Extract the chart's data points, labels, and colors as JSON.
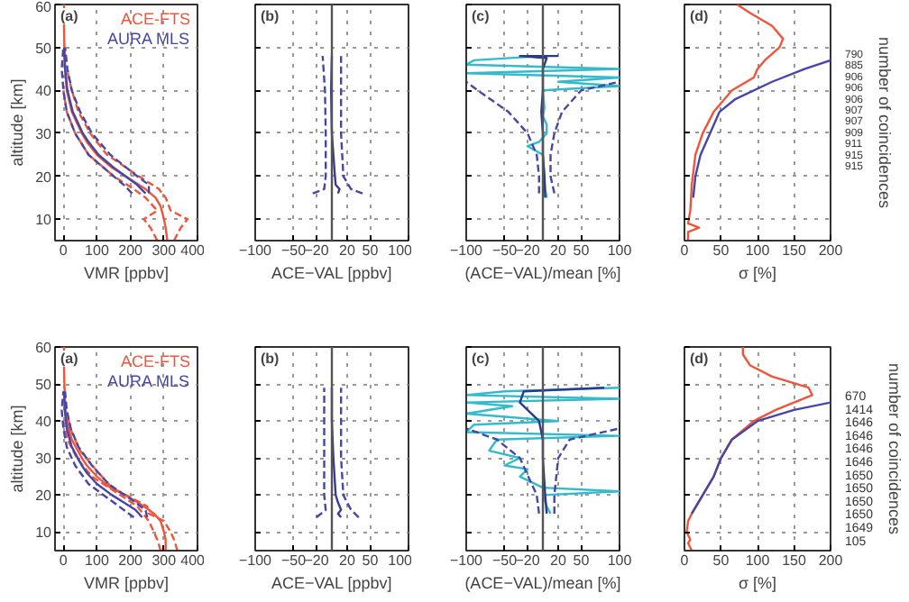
{
  "chart_data": [
    {
      "type": "line",
      "annotations": [
        "(a)"
      ],
      "xlabel": "VMR [ppbv]",
      "ylabel": "altitude [km]",
      "xlim": [
        -25,
        400
      ],
      "ylim": [
        5,
        60
      ],
      "xticks": [
        0,
        100,
        200,
        300,
        400
      ],
      "yticks": [
        10,
        20,
        30,
        40,
        50,
        60
      ],
      "grid": true,
      "legend": "top right",
      "series": [
        {
          "name": "ACE-FTS",
          "color": "#f0553a",
          "x": [
            310,
            305,
            300,
            290,
            275,
            245,
            185,
            145,
            100,
            70,
            55,
            25,
            10,
            5,
            3,
            2,
            2
          ],
          "values": [
            5,
            8,
            10,
            13,
            15,
            17,
            20,
            22,
            25,
            28,
            30,
            35,
            40,
            45,
            50,
            55,
            60
          ]
        },
        {
          "color": "#f0553a",
          "line_style": "dashed",
          "x": [
            280,
            260,
            240,
            280,
            245,
            210,
            150,
            75,
            35,
            10,
            0
          ],
          "values": [
            5,
            8,
            10,
            12,
            15,
            17,
            20,
            25,
            30,
            35,
            40
          ]
        },
        {
          "color": "#f0553a",
          "line_style": "dashed",
          "x": [
            330,
            350,
            370,
            320,
            305,
            285,
            225,
            130,
            80,
            45,
            25,
            10
          ],
          "values": [
            5,
            8,
            10,
            12,
            15,
            17,
            20,
            25,
            30,
            35,
            40,
            45
          ]
        },
        {
          "name": "AURA MLS",
          "color": "#4646a8",
          "x": [
            245,
            220,
            185,
            150,
            105,
            75,
            58,
            28,
            12,
            5,
            2
          ],
          "values": [
            16,
            18,
            20,
            22,
            25,
            28,
            30,
            35,
            40,
            45,
            50
          ]
        },
        {
          "color": "#4646a8",
          "line_style": "dashed",
          "x": [
            205,
            180,
            150,
            75,
            35,
            10,
            0,
            -5,
            0
          ],
          "values": [
            16,
            18,
            20,
            25,
            30,
            35,
            40,
            45,
            50
          ]
        },
        {
          "color": "#4646a8",
          "line_style": "dashed",
          "x": [
            255,
            255,
            220,
            140,
            85,
            50,
            25,
            12,
            5
          ],
          "values": [
            16,
            18,
            20,
            25,
            30,
            35,
            40,
            45,
            50
          ]
        }
      ]
    },
    {
      "type": "line",
      "annotations": [
        "(b)"
      ],
      "xlabel": "ACE−VAL [ppbv]",
      "xlim": [
        -100,
        100
      ],
      "ylim": [
        5,
        60
      ],
      "xticks": [
        -100,
        -50,
        -20,
        20,
        50,
        100
      ],
      "yticks": [
        10,
        20,
        30,
        40,
        50,
        60
      ],
      "grid": true,
      "tick_labels": "x",
      "ref_lines": [
        {
          "axis": "x",
          "value": 0,
          "color": "#555555"
        }
      ],
      "series": [
        {
          "color": "#3a3a90",
          "x": [
            8,
            10,
            5,
            4,
            2,
            0,
            -1,
            0
          ],
          "values": [
            16,
            17,
            18,
            20,
            25,
            30,
            40,
            48
          ]
        },
        {
          "color": "#4646a8",
          "line_style": "dashed",
          "x": [
            -25,
            -10,
            -8,
            -8,
            -9,
            -12
          ],
          "values": [
            16,
            17,
            20,
            30,
            40,
            48
          ]
        },
        {
          "color": "#4646a8",
          "line_style": "dashed",
          "x": [
            40,
            25,
            15,
            12,
            12,
            12
          ],
          "values": [
            16,
            17,
            20,
            30,
            40,
            48
          ]
        }
      ]
    },
    {
      "type": "line",
      "annotations": [
        "(c)"
      ],
      "xlabel": "(ACE−VAL)/mean [%]",
      "xlim": [
        -100,
        100
      ],
      "ylim": [
        5,
        60
      ],
      "xticks": [
        -100,
        -50,
        -20,
        20,
        50,
        100
      ],
      "yticks": [
        10,
        20,
        30,
        40,
        50,
        60
      ],
      "grid": true,
      "tick_labels": "x",
      "ref_lines": [
        {
          "axis": "x",
          "value": 0,
          "color": "#555555"
        }
      ],
      "series": [
        {
          "color": "#33bbcc",
          "x": [
            5,
            3,
            2,
            0,
            -20,
            -5,
            5,
            5,
            0,
            2,
            0,
            100,
            20,
            100,
            -100,
            100,
            -100,
            -90,
            0
          ],
          "values": [
            15,
            17,
            20,
            25,
            27,
            28,
            30,
            32,
            34,
            36,
            40,
            41,
            42,
            43,
            44,
            45,
            46,
            47,
            48
          ]
        },
        {
          "color": "#2a3a8a",
          "x": [
            3,
            2,
            0,
            0,
            -2,
            0,
            0,
            5,
            -30,
            20
          ],
          "values": [
            15,
            20,
            25,
            30,
            35,
            40,
            45,
            47.5,
            48,
            48
          ]
        },
        {
          "color": "#4646a8",
          "line_style": "dashed",
          "x": [
            -5,
            -5,
            -8,
            -20,
            -45,
            -85,
            -100
          ],
          "values": [
            16,
            20,
            25,
            30,
            35,
            40,
            42
          ]
        },
        {
          "color": "#4646a8",
          "line_style": "dashed",
          "x": [
            15,
            10,
            10,
            15,
            25,
            50,
            100
          ],
          "values": [
            16,
            20,
            25,
            30,
            35,
            40,
            42
          ]
        }
      ]
    },
    {
      "type": "line",
      "annotations": [
        "(d)",
        "790",
        "885",
        "906",
        "906",
        "906",
        "907",
        "907",
        "909",
        "911",
        "915",
        "915"
      ],
      "xlabel": "σ [%]",
      "xlim": [
        0,
        200
      ],
      "ylim": [
        5,
        60
      ],
      "xticks": [
        0,
        50,
        100,
        150,
        200
      ],
      "yticks": [
        10,
        20,
        30,
        40,
        50,
        60
      ],
      "grid": true,
      "tick_labels": "x",
      "y2label": "number of coincidences",
      "series": [
        {
          "color": "#f0553a",
          "x": [
            5,
            5,
            20,
            5,
            8,
            10,
            15,
            25,
            40,
            65,
            95,
            100,
            110,
            130,
            135,
            120,
            90,
            72
          ],
          "values": [
            5,
            7,
            8,
            9,
            12,
            18,
            25,
            30,
            35,
            40,
            43,
            45,
            47,
            50,
            52,
            55,
            58,
            60
          ]
        },
        {
          "color": "#4646a8",
          "x": [
            12,
            15,
            22,
            35,
            48,
            70,
            120,
            165,
            200
          ],
          "values": [
            15,
            20,
            25,
            30,
            35,
            38,
            42,
            45,
            47
          ]
        }
      ]
    },
    {
      "type": "line",
      "annotations": [
        "(a)"
      ],
      "xlabel": "VMR [ppbv]",
      "ylabel": "altitude [km]",
      "xlim": [
        -25,
        400
      ],
      "ylim": [
        5,
        60
      ],
      "xticks": [
        0,
        100,
        200,
        300,
        400
      ],
      "yticks": [
        10,
        20,
        30,
        40,
        50,
        60
      ],
      "grid": true,
      "legend": "top right",
      "series": [
        {
          "name": "ACE-FTS",
          "color": "#f0553a",
          "x": [
            305,
            305,
            300,
            290,
            270,
            240,
            185,
            140,
            100,
            70,
            55,
            25,
            10,
            5,
            3,
            2,
            2
          ],
          "values": [
            5,
            8,
            10,
            13,
            15,
            17,
            20,
            22,
            25,
            28,
            30,
            35,
            40,
            45,
            50,
            55,
            60
          ]
        },
        {
          "color": "#f0553a",
          "line_style": "dashed",
          "x": [
            290,
            280,
            270,
            255,
            220,
            170,
            85,
            40,
            12,
            0
          ],
          "values": [
            5,
            8,
            10,
            13,
            17,
            20,
            25,
            30,
            35,
            40
          ]
        },
        {
          "color": "#f0553a",
          "line_style": "dashed",
          "x": [
            340,
            330,
            320,
            300,
            255,
            250,
            145,
            95,
            50,
            25,
            10
          ],
          "values": [
            5,
            8,
            10,
            13,
            15,
            17,
            22,
            27,
            32,
            37,
            42
          ]
        },
        {
          "name": "AURA MLS",
          "color": "#4646a8",
          "x": [
            235,
            215,
            180,
            145,
            100,
            70,
            55,
            25,
            10,
            4,
            2
          ],
          "values": [
            14,
            16,
            18,
            20,
            23,
            26,
            28,
            33,
            38,
            43,
            48
          ]
        },
        {
          "color": "#4646a8",
          "line_style": "dashed",
          "x": [
            210,
            180,
            150,
            75,
            35,
            10,
            0,
            -5,
            0
          ],
          "values": [
            14,
            16,
            18,
            23,
            28,
            33,
            38,
            43,
            48
          ]
        },
        {
          "color": "#4646a8",
          "line_style": "dashed",
          "x": [
            250,
            245,
            215,
            135,
            85,
            45,
            22,
            10,
            5
          ],
          "values": [
            14,
            16,
            18,
            23,
            28,
            33,
            38,
            43,
            48
          ]
        }
      ]
    },
    {
      "type": "line",
      "annotations": [
        "(b)"
      ],
      "xlabel": "ACE−VAL [ppbv]",
      "xlim": [
        -100,
        100
      ],
      "ylim": [
        5,
        60
      ],
      "xticks": [
        -100,
        -50,
        -20,
        20,
        50,
        100
      ],
      "yticks": [
        10,
        20,
        30,
        40,
        50,
        60
      ],
      "grid": true,
      "tick_labels": "x",
      "ref_lines": [
        {
          "axis": "x",
          "value": 0,
          "color": "#555555"
        }
      ],
      "series": [
        {
          "color": "#3a3a90",
          "x": [
            12,
            8,
            12,
            8,
            5,
            2,
            0,
            0
          ],
          "values": [
            14,
            15,
            16,
            18,
            20,
            30,
            40,
            49
          ]
        },
        {
          "color": "#4646a8",
          "line_style": "dashed",
          "x": [
            -20,
            -8,
            -10,
            -10,
            -10,
            -10
          ],
          "values": [
            14,
            16,
            20,
            30,
            40,
            49
          ]
        },
        {
          "color": "#4646a8",
          "line_style": "dashed",
          "x": [
            35,
            25,
            15,
            12,
            12,
            12
          ],
          "values": [
            14,
            16,
            20,
            30,
            40,
            49
          ]
        }
      ]
    },
    {
      "type": "line",
      "annotations": [
        "(c)"
      ],
      "xlabel": "(ACE−VAL)/mean [%]",
      "xlim": [
        -100,
        100
      ],
      "ylim": [
        5,
        60
      ],
      "xticks": [
        -100,
        -50,
        -20,
        20,
        50,
        100
      ],
      "yticks": [
        10,
        20,
        30,
        40,
        50,
        60
      ],
      "grid": true,
      "tick_labels": "x",
      "ref_lines": [
        {
          "axis": "x",
          "value": 0,
          "color": "#555555"
        }
      ],
      "series": [
        {
          "color": "#33bbcc",
          "x": [
            10,
            5,
            0,
            100,
            0,
            -30,
            -20,
            -50,
            -30,
            -70,
            -60,
            100,
            -100,
            -90,
            20,
            -100,
            -40,
            -100,
            100,
            -100,
            -50,
            100
          ],
          "values": [
            15,
            17,
            20,
            21,
            22,
            25,
            27,
            28,
            30,
            32,
            35,
            36,
            37,
            39,
            40,
            42,
            44,
            45,
            46,
            47,
            48,
            49
          ]
        },
        {
          "color": "#2a3a8a",
          "x": [
            5,
            3,
            0,
            0,
            -5,
            -30,
            -25,
            80
          ],
          "values": [
            15,
            20,
            30,
            35,
            40,
            45,
            48,
            49
          ]
        },
        {
          "color": "#4646a8",
          "line_style": "dashed",
          "x": [
            -5,
            -8,
            -30,
            -60,
            -100
          ],
          "values": [
            15,
            20,
            30,
            35,
            38
          ]
        },
        {
          "color": "#4646a8",
          "line_style": "dashed",
          "x": [
            15,
            15,
            20,
            35,
            100
          ],
          "values": [
            15,
            20,
            30,
            35,
            38
          ]
        }
      ]
    },
    {
      "type": "line",
      "annotations": [
        "(d)",
        "670",
        "1414",
        "1646",
        "1646",
        "1646",
        "1646",
        "1650",
        "1650",
        "1650",
        "1650",
        "1649",
        "105"
      ],
      "xlabel": "σ [%]",
      "xlim": [
        0,
        200
      ],
      "ylim": [
        5,
        60
      ],
      "xticks": [
        0,
        50,
        100,
        150,
        200
      ],
      "yticks": [
        10,
        20,
        30,
        40,
        50,
        60
      ],
      "grid": true,
      "tick_labels": "x",
      "y2label": "number of coincidences",
      "series": [
        {
          "color": "#f0553a",
          "x": [
            10,
            5,
            8,
            3,
            5,
            10,
            25,
            40,
            50,
            65,
            95,
            125,
            150,
            175,
            170,
            120,
            90,
            80,
            80
          ],
          "values": [
            5,
            7,
            8,
            10,
            13,
            15,
            20,
            25,
            30,
            35,
            40,
            43,
            45,
            47,
            49,
            52,
            55,
            58,
            60
          ]
        },
        {
          "color": "#4646a8",
          "x": [
            10,
            25,
            40,
            50,
            65,
            100,
            150,
            200
          ],
          "values": [
            15,
            20,
            25,
            30,
            35,
            40,
            43,
            45
          ]
        }
      ]
    }
  ]
}
